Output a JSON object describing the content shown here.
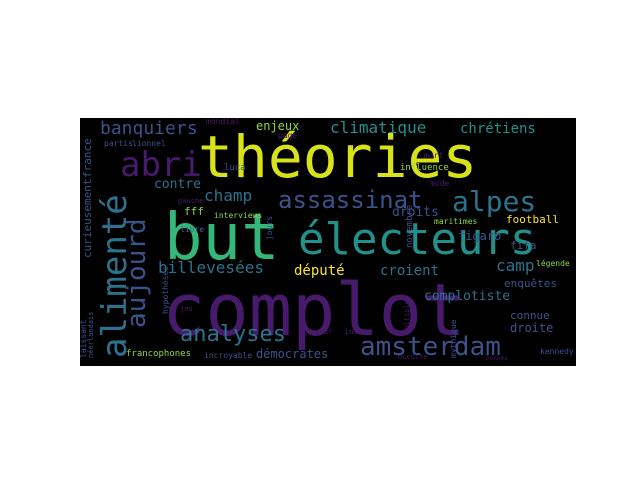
{
  "palette": {
    "purple": "#481a6c",
    "dark_blue": "#3b528b",
    "teal": "#2c728e",
    "green": "#21918c",
    "light_green": "#35b779",
    "lime": "#90d743",
    "yellow": "#d8e219",
    "bright_yellow": "#fde725"
  },
  "words": {
    "theories": "théories",
    "complot": "complot",
    "but": "but",
    "electeurs": "électeurs",
    "abri": "abri",
    "alimente": "alimenté",
    "aujourd": "aujourd",
    "assassinat": "assassinat",
    "alpes": "alpes",
    "amsterdam": "amsterdam",
    "analyses": "analyses",
    "banquiers": "banquiers",
    "climatique": "climatique",
    "chretiens": "chrétiens",
    "enjeux": "enjeux",
    "champ": "champ",
    "contre": "contre",
    "billevesees": "billevesées",
    "depute": "député",
    "croient": "croient",
    "camp": "camp",
    "complotiste": "complotiste",
    "democrates": "démocrates",
    "droite": "droite",
    "connue": "connue",
    "enquetes": "enquêtes",
    "figaro": "figaro",
    "fifa": "fifa",
    "droits": "droits",
    "football": "football",
    "curieusement": "curieusement",
    "france": "france",
    "fff": "fff",
    "libre": "libre",
    "interviews": "interviews",
    "luca": "luca",
    "mondial": "mondial",
    "partis": "partis",
    "lionnel": "lionnel",
    "gauche": "gauche",
    "mort": "mort",
    "influence": "influence",
    "mode": "mode",
    "novembre": "novembre",
    "maritimes": "maritimes",
    "legende": "légende",
    "francophones": "francophones",
    "incroyable": "incroyable",
    "joueur": "joueur",
    "initie": "initié",
    "kennedy": "kennedy",
    "mythique": "mythique",
    "laissant": "laissant",
    "hypotheses": "hypothèses",
    "jeu": "jeu",
    "occulte": "occulte",
    "jours": "jours",
    "page": "page",
    "multiple": "multiple",
    "neerlandais": "néerlandais",
    "bonnes": "bonnes"
  }
}
